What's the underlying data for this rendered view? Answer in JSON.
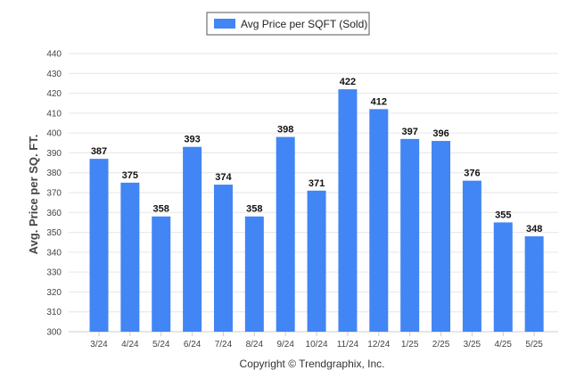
{
  "chart_data": {
    "type": "bar",
    "title": "",
    "legend": {
      "entries": [
        "Avg Price per SQFT (Sold)"
      ],
      "placement": "top-center"
    },
    "ylabel": "Avg. Price per SQ. FT.",
    "xlabel": "",
    "ylim": [
      300,
      440
    ],
    "yticks": [
      300,
      310,
      320,
      330,
      340,
      350,
      360,
      370,
      380,
      390,
      400,
      410,
      420,
      430,
      440
    ],
    "grid": true,
    "categories": [
      "3/24",
      "4/24",
      "5/24",
      "6/24",
      "7/24",
      "8/24",
      "9/24",
      "10/24",
      "11/24",
      "12/24",
      "1/25",
      "2/25",
      "3/25",
      "4/25",
      "5/25"
    ],
    "series": [
      {
        "name": "Avg Price per SQFT (Sold)",
        "color": "#4285f4",
        "values": [
          387,
          375,
          358,
          393,
          374,
          358,
          398,
          371,
          422,
          412,
          397,
          396,
          376,
          355,
          348
        ]
      }
    ],
    "credit": "Copyright © Trendgraphix, Inc."
  }
}
